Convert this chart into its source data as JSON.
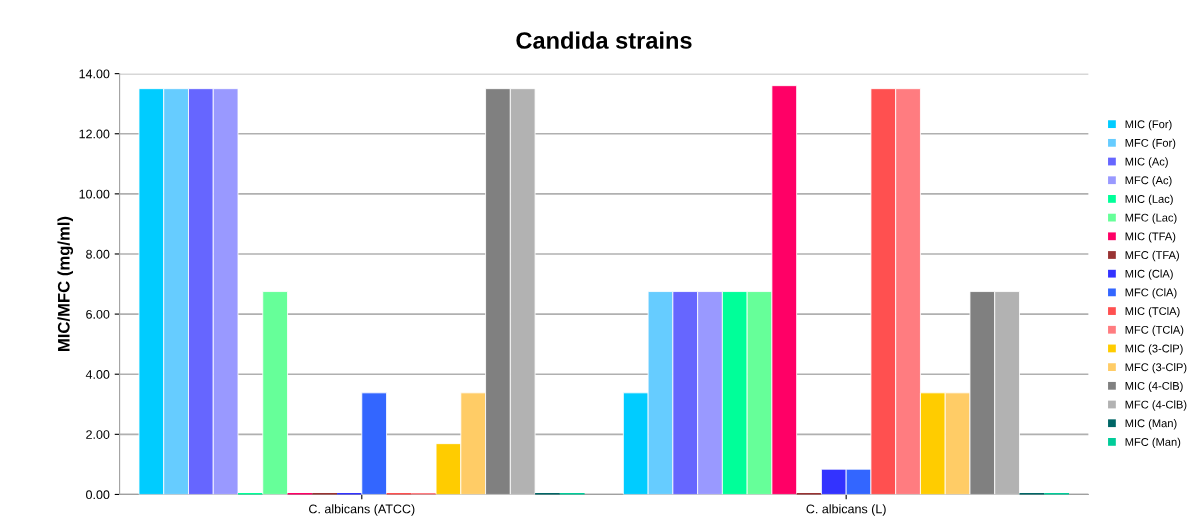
{
  "chart_data": {
    "type": "bar",
    "title": "Candida strains",
    "ylabel": "MIC/MFC (mg/ml)",
    "categories": [
      "C. albicans (ATCC)",
      "C. albicans (L)"
    ],
    "ylim": [
      0,
      14
    ],
    "yticks": [
      {
        "value": 0,
        "label": "0.00"
      },
      {
        "value": 2,
        "label": "2.00"
      },
      {
        "value": 4,
        "label": "4.00"
      },
      {
        "value": 6,
        "label": "6.00"
      },
      {
        "value": 8,
        "label": "8.00"
      },
      {
        "value": 10,
        "label": "10.00"
      },
      {
        "value": 12,
        "label": "12.00"
      },
      {
        "value": 14,
        "label": "14.00"
      }
    ],
    "grid": "y",
    "legend": "right",
    "series": [
      {
        "name": "MIC (For)",
        "color": "#00ccff",
        "values": [
          13.5,
          3.38
        ]
      },
      {
        "name": "MFC (For)",
        "color": "#66ccff",
        "values": [
          13.5,
          6.75
        ]
      },
      {
        "name": "MIC (Ac)",
        "color": "#6666ff",
        "values": [
          13.5,
          6.75
        ]
      },
      {
        "name": "MFC (Ac)",
        "color": "#9999ff",
        "values": [
          13.5,
          6.75
        ]
      },
      {
        "name": "MIC (Lac)",
        "color": "#00ff99",
        "values": [
          0,
          6.75
        ]
      },
      {
        "name": "MFC (Lac)",
        "color": "#66ff99",
        "values": [
          6.75,
          6.75
        ]
      },
      {
        "name": "MIC (TFA)",
        "color": "#ff0066",
        "values": [
          0,
          13.6
        ]
      },
      {
        "name": "MFC (TFA)",
        "color": "#993333",
        "values": [
          0,
          0
        ]
      },
      {
        "name": "MIC (ClA)",
        "color": "#3333ff",
        "values": [
          0,
          0.84
        ]
      },
      {
        "name": "MFC (ClA)",
        "color": "#3366ff",
        "values": [
          3.38,
          0.84
        ]
      },
      {
        "name": "MIC (TClA)",
        "color": "#ff5050",
        "values": [
          0,
          13.5
        ]
      },
      {
        "name": "MFC (TClA)",
        "color": "#ff7c80",
        "values": [
          0,
          13.5
        ]
      },
      {
        "name": "MIC (3-ClP)",
        "color": "#ffcc00",
        "values": [
          1.69,
          3.38
        ]
      },
      {
        "name": "MFC (3-ClP)",
        "color": "#ffcc66",
        "values": [
          3.38,
          3.38
        ]
      },
      {
        "name": "MIC (4-ClB)",
        "color": "#808080",
        "values": [
          13.5,
          6.75
        ]
      },
      {
        "name": "MFC (4-ClB)",
        "color": "#b2b2b2",
        "values": [
          13.5,
          6.75
        ]
      },
      {
        "name": "MIC (Man)",
        "color": "#006666",
        "values": [
          0,
          0
        ]
      },
      {
        "name": "MFC (Man)",
        "color": "#00cc99",
        "values": [
          0,
          0
        ]
      }
    ]
  }
}
